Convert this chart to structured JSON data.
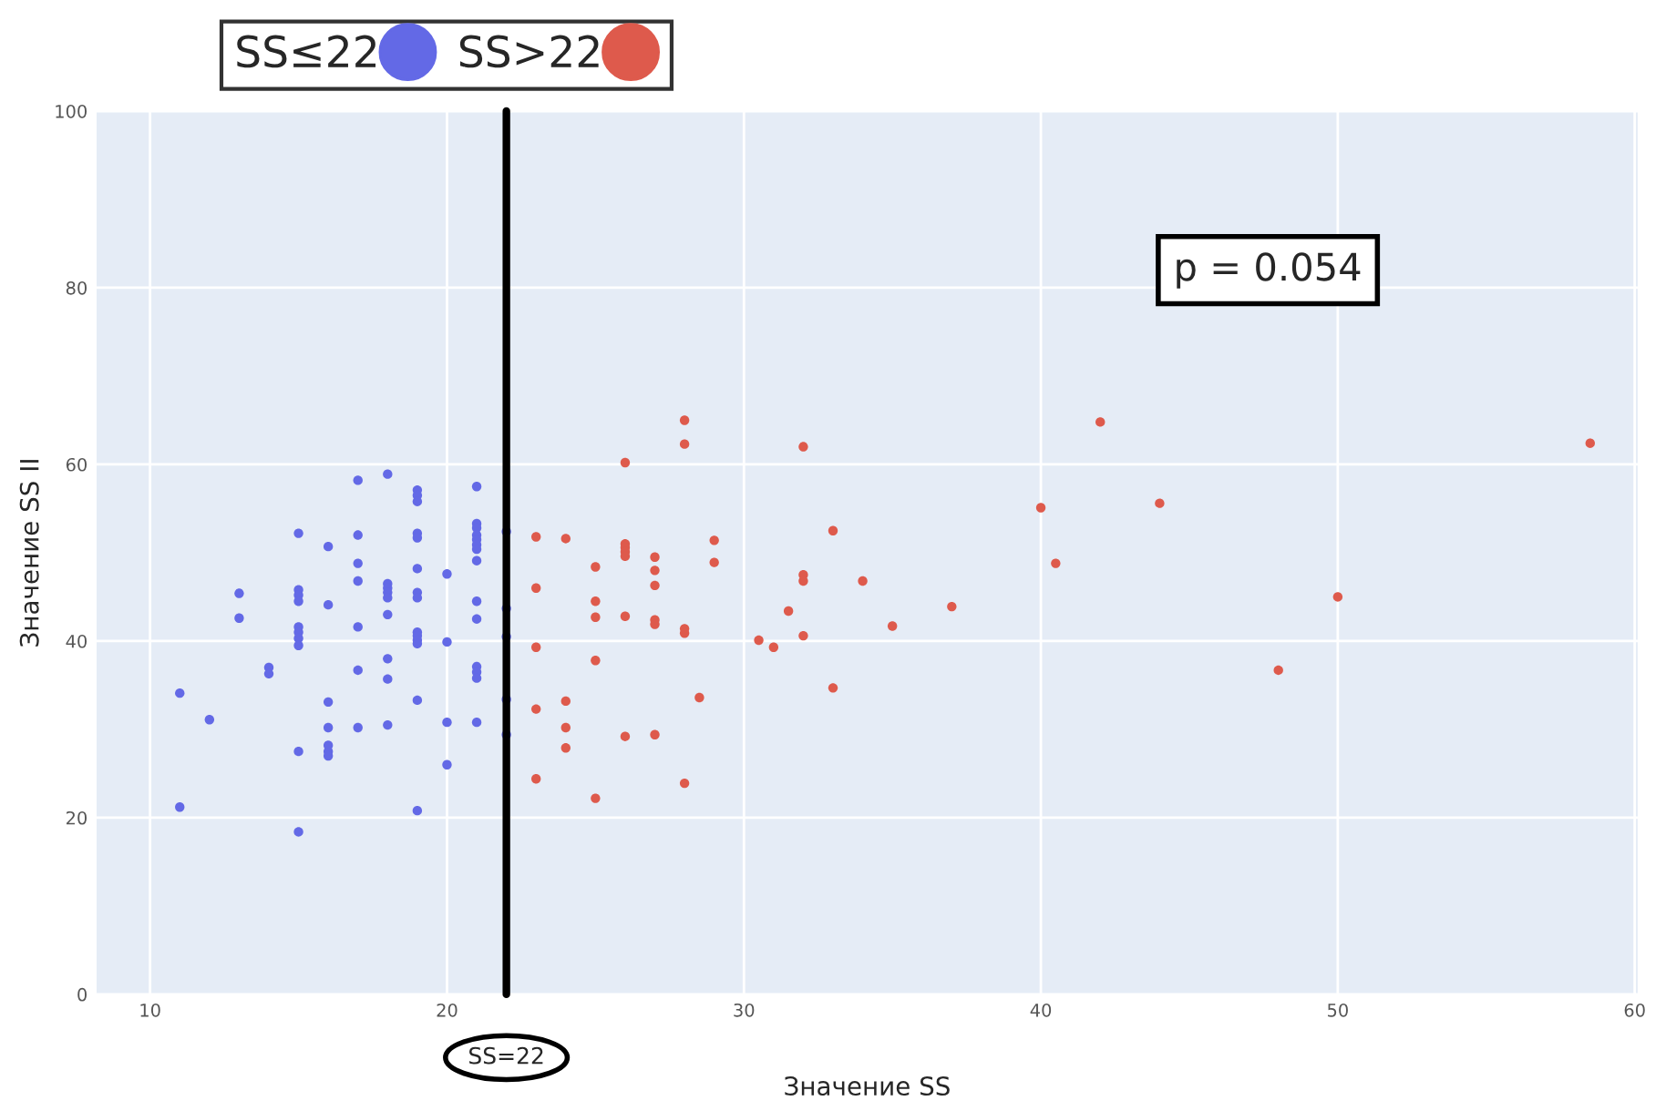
{
  "chart_data": {
    "type": "scatter",
    "xlabel": "Значение SS",
    "ylabel": "Значение SS II",
    "xlim": [
      8.2,
      60.1
    ],
    "xticks": [
      10,
      20,
      30,
      40,
      50,
      60
    ],
    "ylim": [
      0,
      100
    ],
    "yticks": [
      0,
      20,
      40,
      60,
      80,
      100
    ],
    "grid": true,
    "legend": "top left",
    "marker": "circle",
    "series": [
      {
        "name": "SS≤22",
        "color": "#6369e6",
        "x": [
          11,
          11,
          12,
          13,
          13,
          14,
          14,
          15,
          15,
          15,
          15,
          15,
          15,
          15,
          15,
          15,
          15,
          16,
          16,
          16,
          16,
          16,
          16,
          16,
          17,
          17,
          17,
          17,
          17,
          17,
          17,
          18,
          18,
          18,
          18,
          18,
          18,
          18,
          18,
          18,
          19,
          19,
          19,
          19,
          19,
          19,
          19,
          19,
          19,
          19,
          19,
          19,
          19,
          19,
          20,
          20,
          20,
          20,
          21,
          21,
          21,
          21,
          21,
          21,
          21,
          21,
          21,
          21,
          21,
          21,
          21,
          21,
          22,
          22,
          22,
          22,
          22
        ],
        "values": [
          34.1,
          21.2,
          31.1,
          45.4,
          42.6,
          37,
          36.3,
          52.2,
          45.8,
          45.2,
          44.5,
          41.6,
          41,
          40.3,
          39.5,
          27.5,
          18.4,
          50.7,
          44.1,
          33.1,
          30.2,
          28.2,
          27.5,
          27,
          58.2,
          52,
          48.8,
          46.8,
          41.6,
          36.7,
          30.2,
          58.9,
          46.5,
          46,
          45.5,
          44.9,
          43,
          38,
          35.7,
          30.5,
          57.1,
          56.5,
          55.8,
          52.2,
          51.7,
          48.2,
          45.5,
          44.9,
          41,
          40.6,
          40.1,
          39.7,
          33.3,
          20.8,
          47.6,
          39.9,
          30.8,
          26,
          57.5,
          53.3,
          52.8,
          52,
          51.5,
          50.9,
          50.4,
          49.1,
          44.5,
          42.5,
          37.1,
          36.5,
          35.8,
          30.8,
          52.4,
          43.7,
          40.5,
          33.4,
          29.4
        ]
      },
      {
        "name": "SS>22",
        "color": "#de5a4c",
        "x": [
          23,
          23,
          23,
          23,
          23,
          24,
          24,
          24,
          24,
          25,
          25,
          25,
          25,
          25,
          26,
          26,
          26,
          26,
          26,
          26,
          26,
          27,
          27,
          27,
          27,
          27,
          27,
          28,
          28,
          28,
          28,
          28,
          28.5,
          29,
          29,
          30.5,
          31,
          31.5,
          32,
          32,
          32,
          32,
          33,
          33,
          34,
          35,
          37,
          40,
          40.5,
          42,
          44,
          48,
          50,
          58.5
        ],
        "values": [
          51.8,
          46,
          39.3,
          32.3,
          24.4,
          51.6,
          33.2,
          30.2,
          27.9,
          48.4,
          44.5,
          42.7,
          37.8,
          22.2,
          60.2,
          51,
          50.6,
          50.1,
          49.6,
          42.8,
          29.2,
          49.5,
          48,
          46.3,
          42.4,
          41.9,
          29.4,
          65,
          62.3,
          41.4,
          40.9,
          23.9,
          33.6,
          51.4,
          48.9,
          40.1,
          39.3,
          43.4,
          62,
          47.5,
          46.8,
          40.6,
          52.5,
          34.7,
          46.8,
          41.7,
          43.9,
          55.1,
          48.8,
          64.8,
          55.6,
          36.7,
          45,
          62.4
        ]
      }
    ],
    "ref_lines": [
      {
        "axis": "x",
        "value": 22,
        "label": "SS=22",
        "color": "#000000",
        "line_style": "solid"
      }
    ],
    "annotations": [
      "p = 0.054"
    ]
  }
}
